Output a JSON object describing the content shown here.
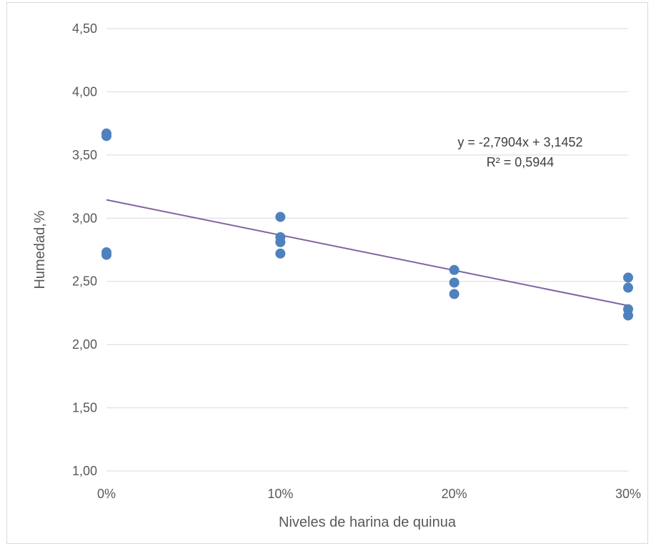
{
  "chart_data": {
    "type": "scatter",
    "title": "",
    "xlabel": "Niveles de harina de quinua",
    "ylabel": "Humedad,%",
    "xlim": [
      0,
      0.3
    ],
    "ylim": [
      1.0,
      4.5
    ],
    "x_ticks": [
      0,
      0.1,
      0.2,
      0.3
    ],
    "x_tick_labels": [
      "0%",
      "10%",
      "20%",
      "30%"
    ],
    "y_ticks": [
      1.0,
      1.5,
      2.0,
      2.5,
      3.0,
      3.5,
      4.0,
      4.5
    ],
    "y_tick_labels": [
      "1,00",
      "1,50",
      "2,00",
      "2,50",
      "3,00",
      "3,50",
      "4,00",
      "4,50"
    ],
    "grid": true,
    "legend": "none",
    "series": [
      {
        "color": "#4f81bd",
        "points": [
          {
            "x": 0,
            "y": 3.67
          },
          {
            "x": 0,
            "y": 3.65
          },
          {
            "x": 0,
            "y": 2.73
          },
          {
            "x": 0,
            "y": 2.71
          },
          {
            "x": 0.1,
            "y": 3.01
          },
          {
            "x": 0.1,
            "y": 2.85
          },
          {
            "x": 0.1,
            "y": 2.81
          },
          {
            "x": 0.1,
            "y": 2.72
          },
          {
            "x": 0.2,
            "y": 2.59
          },
          {
            "x": 0.2,
            "y": 2.49
          },
          {
            "x": 0.2,
            "y": 2.4
          },
          {
            "x": 0.3,
            "y": 2.53
          },
          {
            "x": 0.3,
            "y": 2.45
          },
          {
            "x": 0.3,
            "y": 2.28
          },
          {
            "x": 0.3,
            "y": 2.23
          }
        ]
      }
    ],
    "trendline": {
      "slope": -2.7904,
      "intercept": 3.1452,
      "color": "#8064a2",
      "equation_label": "y = -2,7904x + 3,1452",
      "r2_label": "R² = 0,5944"
    }
  }
}
